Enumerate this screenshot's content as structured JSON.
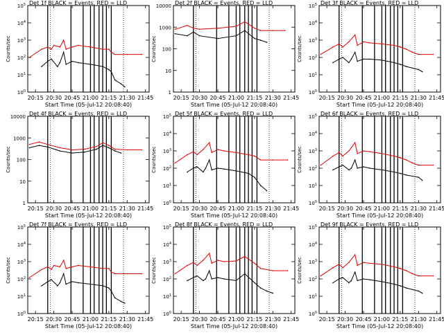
{
  "figure": {
    "xlabel": "Start Time (05-Jul-12 20:08:40)",
    "ylabel": "Counts/sec",
    "x_ticks": [
      "20:15",
      "20:30",
      "20:45",
      "21:00",
      "21:15",
      "21:30",
      "21:45"
    ]
  },
  "chart_data": [
    {
      "type": "line",
      "title": "Det 1f BLACK = Events, RED = LLD",
      "ylog": true,
      "ylim": [
        1,
        100000
      ],
      "y_ticks": [
        "10^0",
        "10^1",
        "10^2",
        "10^3",
        "10^4",
        "10^5"
      ],
      "xlim": [
        "20:08:40",
        "21:48:00"
      ],
      "series": [
        {
          "name": "Events",
          "color": "#000000",
          "x": [
            "20:20",
            "20:25",
            "20:28",
            "20:33",
            "20:35",
            "20:38",
            "20:40",
            "20:45",
            "20:50",
            "21:00",
            "21:10",
            "21:15",
            "21:17",
            "21:20",
            "21:25",
            "21:28"
          ],
          "y": [
            30,
            60,
            80,
            30,
            50,
            200,
            40,
            60,
            50,
            40,
            30,
            20,
            15,
            5,
            3,
            2
          ]
        },
        {
          "name": "LLD",
          "color": "#dd0000",
          "x": [
            "20:10",
            "20:20",
            "20:25",
            "20:28",
            "20:30",
            "20:35",
            "20:38",
            "20:40",
            "20:45",
            "20:50",
            "21:00",
            "21:10",
            "21:15",
            "21:17",
            "21:20",
            "21:30",
            "21:42"
          ],
          "y": [
            100,
            300,
            400,
            300,
            500,
            400,
            1000,
            300,
            400,
            500,
            400,
            300,
            300,
            200,
            150,
            150,
            150
          ]
        }
      ]
    },
    {
      "type": "line",
      "title": "Det 2f BLACK = Events, RED = LLD",
      "ylog": true,
      "ylim": [
        1,
        10000
      ],
      "y_ticks": [
        "1",
        "10",
        "100",
        "1000",
        "10000"
      ],
      "xlim": [
        "20:08:40",
        "21:48:00"
      ],
      "series": [
        {
          "name": "Events",
          "color": "#000000",
          "x": [
            "20:10",
            "20:20",
            "20:25",
            "20:30",
            "20:45",
            "21:00",
            "21:07",
            "21:15",
            "21:20",
            "21:25"
          ],
          "y": [
            500,
            400,
            600,
            400,
            300,
            400,
            700,
            300,
            250,
            200
          ]
        },
        {
          "name": "LLD",
          "color": "#dd0000",
          "x": [
            "20:10",
            "20:20",
            "20:25",
            "20:30",
            "20:45",
            "21:00",
            "21:07",
            "21:15",
            "21:20",
            "21:30",
            "21:40"
          ],
          "y": [
            800,
            1200,
            900,
            800,
            900,
            1100,
            1800,
            900,
            700,
            700,
            700
          ]
        }
      ]
    },
    {
      "type": "line",
      "title": "Det 3f BLACK = Events, RED = LLD",
      "ylog": true,
      "ylim": [
        1,
        100000
      ],
      "y_ticks": [
        "10^0",
        "10^1",
        "10^2",
        "10^3",
        "10^4",
        "10^5"
      ],
      "xlim": [
        "20:08:40",
        "21:48:00"
      ],
      "series": [
        {
          "name": "Events",
          "color": "#000000",
          "x": [
            "20:20",
            "20:25",
            "20:28",
            "20:33",
            "20:35",
            "20:38",
            "20:40",
            "20:45",
            "20:50",
            "21:00",
            "21:10",
            "21:15",
            "21:20",
            "21:30",
            "21:33"
          ],
          "y": [
            50,
            80,
            100,
            50,
            80,
            200,
            60,
            80,
            80,
            70,
            50,
            40,
            30,
            20,
            15
          ]
        },
        {
          "name": "LLD",
          "color": "#dd0000",
          "x": [
            "20:10",
            "20:20",
            "20:25",
            "20:28",
            "20:33",
            "20:38",
            "20:40",
            "20:45",
            "20:50",
            "21:00",
            "21:10",
            "21:15",
            "21:20",
            "21:25",
            "21:30",
            "21:42"
          ],
          "y": [
            150,
            400,
            600,
            400,
            800,
            2000,
            500,
            800,
            700,
            600,
            500,
            400,
            300,
            200,
            150,
            150
          ]
        }
      ]
    },
    {
      "type": "line",
      "title": "Det 4f BLACK = Events, RED = LLD",
      "ylog": true,
      "ylim": [
        1,
        10000
      ],
      "y_ticks": [
        "1",
        "10",
        "100",
        "1000",
        "10000"
      ],
      "xlim": [
        "20:08:40",
        "21:48:00"
      ],
      "series": [
        {
          "name": "Events",
          "color": "#000000",
          "x": [
            "20:10",
            "20:18",
            "20:25",
            "20:35",
            "20:45",
            "20:55",
            "21:05",
            "21:10",
            "21:15",
            "21:20",
            "21:25"
          ],
          "y": [
            350,
            450,
            380,
            250,
            200,
            220,
            300,
            450,
            350,
            250,
            200
          ]
        },
        {
          "name": "LLD",
          "color": "#dd0000",
          "x": [
            "20:10",
            "20:18",
            "20:25",
            "20:35",
            "20:45",
            "20:55",
            "21:05",
            "21:10",
            "21:15",
            "21:20",
            "21:30",
            "21:42"
          ],
          "y": [
            500,
            650,
            500,
            350,
            280,
            300,
            400,
            600,
            450,
            300,
            280,
            280
          ]
        }
      ]
    },
    {
      "type": "line",
      "title": "Det 5f BLACK = Events, RED = LLD",
      "ylog": true,
      "ylim": [
        1,
        100000
      ],
      "y_ticks": [
        "10^0",
        "10^1",
        "10^2",
        "10^3",
        "10^4",
        "10^5"
      ],
      "xlim": [
        "20:08:40",
        "21:48:00"
      ],
      "series": [
        {
          "name": "Events",
          "color": "#000000",
          "x": [
            "20:20",
            "20:25",
            "20:28",
            "20:33",
            "20:35",
            "20:38",
            "20:40",
            "20:45",
            "20:50",
            "21:00",
            "21:10",
            "21:15",
            "21:20",
            "21:25"
          ],
          "y": [
            60,
            100,
            120,
            60,
            100,
            300,
            80,
            100,
            90,
            70,
            50,
            30,
            10,
            5
          ]
        },
        {
          "name": "LLD",
          "color": "#dd0000",
          "x": [
            "20:10",
            "20:20",
            "20:25",
            "20:28",
            "20:33",
            "20:38",
            "20:40",
            "20:45",
            "20:50",
            "21:00",
            "21:10",
            "21:15",
            "21:20",
            "21:30",
            "21:42"
          ],
          "y": [
            200,
            600,
            900,
            600,
            1200,
            3000,
            800,
            1200,
            1000,
            800,
            600,
            500,
            300,
            300,
            300
          ]
        }
      ]
    },
    {
      "type": "line",
      "title": "Det 6f BLACK = Events, RED = LLD",
      "ylog": true,
      "ylim": [
        1,
        100000
      ],
      "y_ticks": [
        "10^0",
        "10^1",
        "10^2",
        "10^3",
        "10^4",
        "10^5"
      ],
      "xlim": [
        "20:08:40",
        "21:48:00"
      ],
      "series": [
        {
          "name": "Events",
          "color": "#000000",
          "x": [
            "20:20",
            "20:25",
            "20:28",
            "20:33",
            "20:35",
            "20:38",
            "20:40",
            "20:45",
            "20:50",
            "21:00",
            "21:10",
            "21:15",
            "21:20",
            "21:30",
            "21:33"
          ],
          "y": [
            80,
            120,
            150,
            80,
            100,
            300,
            100,
            120,
            100,
            80,
            60,
            50,
            40,
            30,
            20
          ]
        },
        {
          "name": "LLD",
          "color": "#dd0000",
          "x": [
            "20:10",
            "20:20",
            "20:25",
            "20:28",
            "20:33",
            "20:38",
            "20:40",
            "20:45",
            "20:50",
            "21:00",
            "21:10",
            "21:15",
            "21:20",
            "21:25",
            "21:30",
            "21:42"
          ],
          "y": [
            150,
            500,
            800,
            500,
            1000,
            3000,
            700,
            1000,
            900,
            700,
            500,
            400,
            300,
            200,
            150,
            150
          ]
        }
      ]
    },
    {
      "type": "line",
      "title": "Det 7f BLACK = Events, RED = LLD",
      "ylog": true,
      "ylim": [
        1,
        100000
      ],
      "y_ticks": [
        "10^0",
        "10^1",
        "10^2",
        "10^3",
        "10^4",
        "10^5"
      ],
      "xlim": [
        "20:08:40",
        "21:48:00"
      ],
      "series": [
        {
          "name": "Events",
          "color": "#000000",
          "x": [
            "20:20",
            "20:25",
            "20:28",
            "20:33",
            "20:35",
            "20:38",
            "20:40",
            "20:45",
            "20:50",
            "21:00",
            "21:10",
            "21:15",
            "21:17",
            "21:20",
            "21:25",
            "21:28"
          ],
          "y": [
            40,
            70,
            90,
            40,
            60,
            200,
            50,
            70,
            60,
            50,
            40,
            30,
            20,
            8,
            5,
            4
          ]
        },
        {
          "name": "LLD",
          "color": "#dd0000",
          "x": [
            "20:10",
            "20:20",
            "20:25",
            "20:28",
            "20:30",
            "20:35",
            "20:38",
            "20:40",
            "20:45",
            "20:50",
            "21:00",
            "21:10",
            "21:15",
            "21:17",
            "21:20",
            "21:30",
            "21:42"
          ],
          "y": [
            120,
            350,
            500,
            350,
            600,
            500,
            1200,
            400,
            500,
            600,
            500,
            400,
            400,
            250,
            200,
            200,
            200
          ]
        }
      ]
    },
    {
      "type": "line",
      "title": "Det 8f BLACK = Events, RED = LLD",
      "ylog": true,
      "ylim": [
        1,
        100000
      ],
      "y_ticks": [
        "10^0",
        "10^1",
        "10^2",
        "10^3",
        "10^4",
        "10^5"
      ],
      "xlim": [
        "20:08:40",
        "21:48:00"
      ],
      "series": [
        {
          "name": "Events",
          "color": "#000000",
          "x": [
            "20:20",
            "20:25",
            "20:28",
            "20:33",
            "20:35",
            "20:38",
            "20:40",
            "20:45",
            "20:50",
            "21:00",
            "21:07",
            "21:15",
            "21:20",
            "21:25",
            "21:30"
          ],
          "y": [
            80,
            120,
            150,
            80,
            100,
            300,
            100,
            120,
            100,
            80,
            200,
            60,
            30,
            20,
            15
          ]
        },
        {
          "name": "LLD",
          "color": "#dd0000",
          "x": [
            "20:10",
            "20:20",
            "20:25",
            "20:28",
            "20:33",
            "20:38",
            "20:40",
            "20:45",
            "20:50",
            "21:00",
            "21:07",
            "21:15",
            "21:20",
            "21:30",
            "21:42"
          ],
          "y": [
            200,
            600,
            900,
            600,
            1200,
            3000,
            800,
            1200,
            1000,
            1100,
            2000,
            800,
            400,
            300,
            300
          ]
        }
      ]
    },
    {
      "type": "line",
      "title": "Det 9f BLACK = Events, RED = LLD",
      "ylog": true,
      "ylim": [
        1,
        100000
      ],
      "y_ticks": [
        "10^0",
        "10^1",
        "10^2",
        "10^3",
        "10^4",
        "10^5"
      ],
      "xlim": [
        "20:08:40",
        "21:48:00"
      ],
      "series": [
        {
          "name": "Events",
          "color": "#000000",
          "x": [
            "20:20",
            "20:25",
            "20:28",
            "20:33",
            "20:35",
            "20:38",
            "20:40",
            "20:45",
            "20:50",
            "21:00",
            "21:10",
            "21:15",
            "21:20",
            "21:30",
            "21:33"
          ],
          "y": [
            60,
            100,
            120,
            60,
            80,
            250,
            80,
            100,
            90,
            70,
            50,
            40,
            30,
            20,
            15
          ]
        },
        {
          "name": "LLD",
          "color": "#dd0000",
          "x": [
            "20:10",
            "20:20",
            "20:25",
            "20:28",
            "20:33",
            "20:38",
            "20:40",
            "20:45",
            "20:50",
            "21:00",
            "21:10",
            "21:15",
            "21:20",
            "21:25",
            "21:30",
            "21:42"
          ],
          "y": [
            150,
            450,
            700,
            450,
            900,
            2500,
            600,
            900,
            800,
            700,
            500,
            400,
            300,
            200,
            150,
            150
          ]
        }
      ]
    }
  ],
  "vlines": {
    "solid": [
      "20:25",
      "20:44",
      "20:54",
      "21:00",
      "21:03",
      "21:07",
      "21:10",
      "21:13",
      "21:17"
    ],
    "dotted": [
      "20:27",
      "21:27"
    ]
  }
}
